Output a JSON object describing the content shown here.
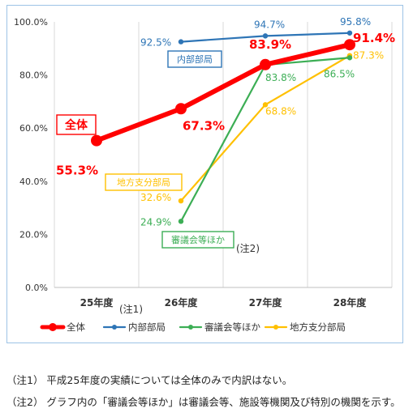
{
  "chart_data": {
    "type": "line",
    "categories": [
      "25年度",
      "26年度",
      "27年度",
      "28年度"
    ],
    "category_notes": [
      "(注1)",
      "",
      "",
      ""
    ],
    "ylim": [
      0,
      100
    ],
    "yticks": [
      0,
      20,
      40,
      60,
      80,
      100
    ],
    "ytick_labels": [
      "0.0%",
      "20.0%",
      "40.0%",
      "60.0%",
      "80.0%",
      "100.0%"
    ],
    "grid": "vertical",
    "legend_position": "bottom",
    "series": [
      {
        "name": "全体",
        "color": "#ff0000",
        "values": [
          55.3,
          67.3,
          83.9,
          91.4
        ],
        "labels": [
          "55.3%",
          "67.3%",
          "83.9%",
          "91.4%"
        ]
      },
      {
        "name": "内部部局",
        "color": "#2e75b6",
        "values": [
          null,
          92.5,
          94.7,
          95.8
        ],
        "labels": [
          "",
          "92.5%",
          "94.7%",
          "95.8%"
        ]
      },
      {
        "name": "審議会等ほか",
        "color": "#3cae55",
        "values": [
          null,
          24.9,
          83.8,
          86.5
        ],
        "labels": [
          "",
          "24.9%",
          "83.8%",
          "86.5%"
        ]
      },
      {
        "name": "地方支分部局",
        "color": "#ffc000",
        "values": [
          null,
          32.6,
          68.8,
          87.3
        ],
        "labels": [
          "",
          "32.6%",
          "68.8%",
          "87.3%"
        ]
      }
    ],
    "annotations": [
      {
        "text": "全体",
        "color": "#ff0000"
      },
      {
        "text": "内部部局",
        "color": "#2e75b6"
      },
      {
        "text": "地方支分部局",
        "color": "#ffc000"
      },
      {
        "text": "審議会等ほか",
        "color": "#3cae55"
      },
      {
        "text": "(注2)",
        "color": "#333333"
      }
    ]
  },
  "notes": [
    "（注1） 平成25年度の実績については全体のみで内訳はない。",
    "（注2） グラフ内の「審議会等ほか」は審議会等、施設等機関及び特別の機関を示す。"
  ]
}
